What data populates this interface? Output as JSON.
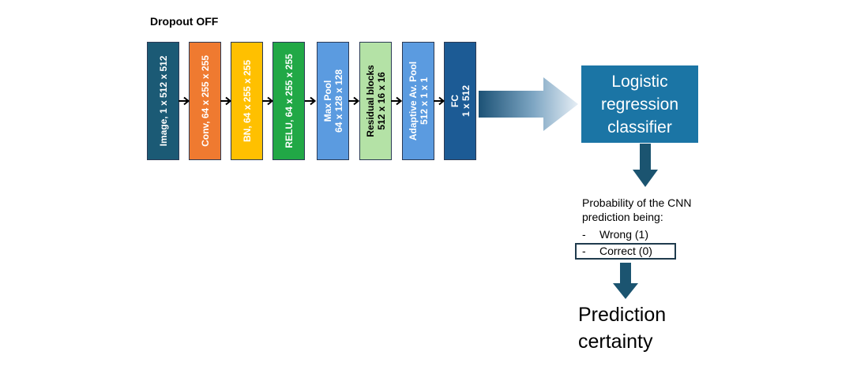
{
  "title": "Dropout OFF",
  "colors": {
    "image": "#1b5a75",
    "conv": "#ef7a30",
    "bn": "#ffc000",
    "relu": "#21a846",
    "maxpool": "#5b9be0",
    "residual": "#b4e2a6",
    "adaptive": "#5b9be0",
    "fc": "#1c5b95",
    "classifier": "#1b75a5",
    "arrow": "#1b5470"
  },
  "layers": [
    {
      "lines": [
        "Image, 1 x 512 x 512"
      ]
    },
    {
      "lines": [
        "Conv, 64 x 255 x 255"
      ]
    },
    {
      "lines": [
        "BN, 64 x 255 x 255"
      ]
    },
    {
      "lines": [
        "RELU, 64 x 255 x 255"
      ]
    },
    {
      "lines": [
        "Max Pool",
        "64 x 128 x 128"
      ]
    },
    {
      "lines": [
        "Residual blocks",
        "512 x 16 x 16"
      ]
    },
    {
      "lines": [
        "Adaptive Av. Pool",
        "512 x 1 x 1"
      ]
    },
    {
      "lines": [
        "FC",
        "1 x 512"
      ]
    }
  ],
  "classifier": {
    "lines": [
      "Logistic",
      "regression",
      "classifier"
    ]
  },
  "probability": {
    "lines": [
      "Probability of the CNN",
      "prediction being:"
    ],
    "options": [
      {
        "dash": "-",
        "text": "Wrong (1)"
      },
      {
        "dash": "-",
        "text": "Correct (0)"
      }
    ]
  },
  "certainty": {
    "lines": [
      "Prediction",
      "certainty"
    ]
  }
}
